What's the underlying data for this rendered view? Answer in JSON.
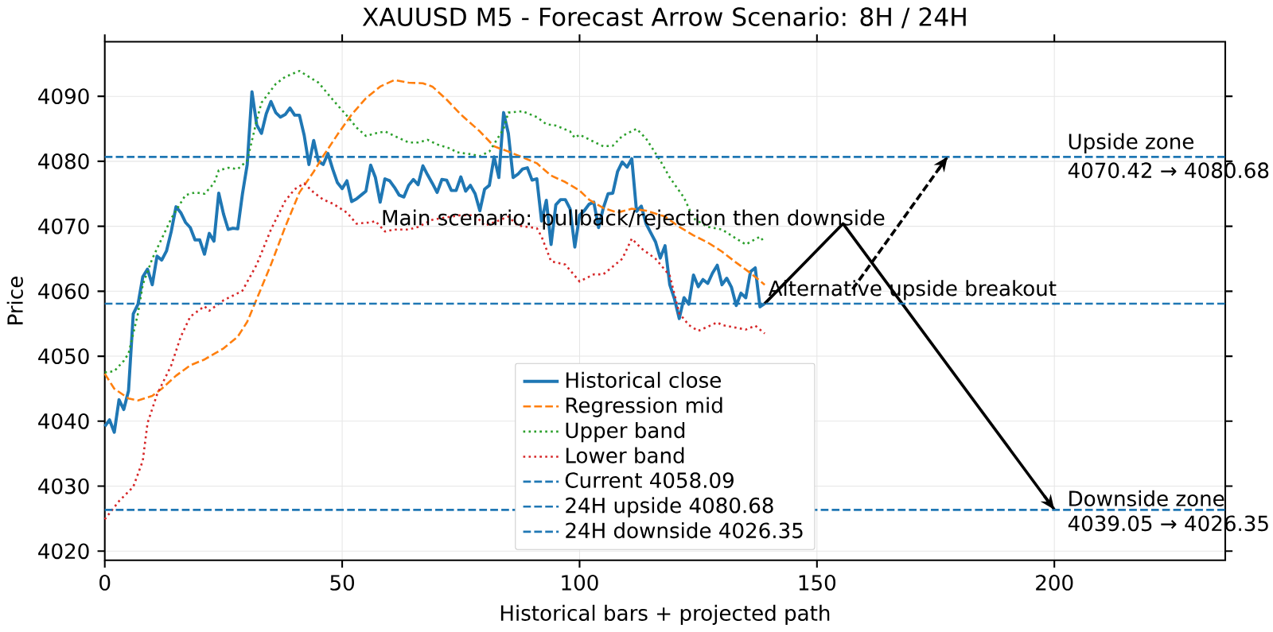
{
  "chart_data": {
    "type": "line",
    "title": "XAUUSD M5 - Forecast Arrow Scenario: 8H / 24H",
    "xlabel": "Historical bars + projected path",
    "ylabel": "Price",
    "xlim": [
      0,
      236
    ],
    "ylim": [
      4018.6,
      4098.4
    ],
    "xticks": [
      0,
      50,
      100,
      150,
      200
    ],
    "yticks": [
      4020,
      4030,
      4040,
      4050,
      4060,
      4070,
      4080,
      4090
    ],
    "grid": true,
    "legend": "bottom",
    "series": [
      {
        "name": "Historical close",
        "color": "#1f77b4",
        "line_style": "solid",
        "x": [
          0,
          1,
          2,
          3,
          4,
          5,
          6,
          7,
          8,
          9,
          10,
          11,
          12,
          13,
          14,
          15,
          16,
          17,
          18,
          19,
          20,
          21,
          22,
          23,
          24,
          25,
          26,
          27,
          28,
          29,
          30,
          31,
          32,
          33,
          34,
          35,
          36,
          37,
          38,
          39,
          40,
          41,
          42,
          43,
          44,
          45,
          46,
          47,
          48,
          49,
          50,
          51,
          52,
          53,
          54,
          55,
          56,
          57,
          58,
          59,
          60,
          61,
          62,
          63,
          64,
          65,
          66,
          67,
          68,
          69,
          70,
          71,
          72,
          73,
          74,
          75,
          76,
          77,
          78,
          79,
          80,
          81,
          82,
          83,
          84,
          85,
          86,
          87,
          88,
          89,
          90,
          91,
          92,
          93,
          94,
          95,
          96,
          97,
          98,
          99,
          100,
          101,
          102,
          103,
          104,
          105,
          106,
          107,
          108,
          109,
          110,
          111,
          112,
          113,
          114,
          115,
          116,
          117,
          118,
          119,
          120,
          121,
          122,
          123,
          124,
          125,
          126,
          127,
          128,
          129,
          130,
          131,
          132,
          133,
          134,
          135,
          136,
          137,
          138,
          139
        ],
        "values": [
          4039.2,
          4040.2,
          4038.3,
          4043.3,
          4041.8,
          4044.7,
          4056.5,
          4058.0,
          4062.2,
          4063.4,
          4061.0,
          4065.4,
          4064.8,
          4066.2,
          4069.2,
          4073.0,
          4072.1,
          4070.6,
          4069.8,
          4067.9,
          4067.9,
          4065.7,
          4068.9,
          4067.7,
          4075.1,
          4071.9,
          4069.5,
          4069.7,
          4069.6,
          4075.0,
          4079.5,
          4090.7,
          4085.6,
          4084.3,
          4087.3,
          4089.2,
          4087.5,
          4086.8,
          4087.2,
          4088.2,
          4087.1,
          4087.1,
          4084.0,
          4079.5,
          4083.2,
          4080.0,
          4079.5,
          4081.2,
          4078.8,
          4076.7,
          4075.8,
          4077.0,
          4073.8,
          4074.2,
          4074.8,
          4075.4,
          4079.4,
          4077.5,
          4073.7,
          4077.3,
          4077.0,
          4076.0,
          4074.8,
          4074.5,
          4076.3,
          4077.2,
          4076.4,
          4079.3,
          4077.9,
          4076.6,
          4075.2,
          4077.2,
          4077.1,
          4075.5,
          4075.5,
          4077.6,
          4075.4,
          4076.3,
          4075.0,
          4072.4,
          4075.7,
          4076.3,
          4080.7,
          4077.5,
          4087.5,
          4084.3,
          4077.5,
          4078.0,
          4078.8,
          4079.0,
          4077.1,
          4077.3,
          4070.8,
          4074.0,
          4067.2,
          4073.3,
          4074.1,
          4074.1,
          4072.7,
          4066.8,
          4071.7,
          4072.4,
          4073.4,
          4073.7,
          4069.8,
          4072.8,
          4075.0,
          4075.1,
          4078.4,
          4079.9,
          4079.1,
          4080.4,
          4072.3,
          4073.1,
          4070.4,
          4069.0,
          4067.6,
          4065.1,
          4067.0,
          4061.0,
          4058.8,
          4055.8,
          4059.0,
          4058.0,
          4062.5,
          4060.7,
          4061.8,
          4061.2,
          4062.8,
          4064.0,
          4061.0,
          4062.0,
          4060.6,
          4057.8,
          4059.7,
          4059.0,
          4063.0,
          4063.6,
          4057.6,
          4058.1
        ]
      },
      {
        "name": "Regression mid",
        "color": "#ff7f0e",
        "line_style": "dashed",
        "x": [
          0,
          2,
          5,
          7,
          10,
          12,
          15,
          18,
          21,
          25,
          28,
          30,
          32,
          35,
          38,
          41,
          44,
          46,
          49,
          52,
          55,
          58,
          61,
          64,
          67,
          69,
          72,
          75,
          79,
          82,
          85,
          88,
          91,
          94,
          97,
          100,
          102,
          105,
          108,
          111,
          114,
          118,
          121,
          124,
          127,
          130,
          133,
          136,
          139
        ],
        "values": [
          4047.3,
          4045.0,
          4043.5,
          4043.2,
          4043.9,
          4045.0,
          4047.0,
          4048.6,
          4049.5,
          4051.2,
          4053.0,
          4055.3,
          4058.8,
          4064.1,
          4069.9,
          4075.2,
          4078.4,
          4080.8,
          4084.1,
          4087.2,
          4089.7,
          4091.5,
          4092.5,
          4092.1,
          4092.0,
          4091.5,
          4089.5,
          4087.2,
          4084.6,
          4082.3,
          4081.5,
          4080.6,
          4079.7,
          4077.8,
          4076.8,
          4075.5,
          4074.1,
          4072.8,
          4072.1,
          4072.7,
          4072.4,
          4071.5,
          4069.9,
          4068.6,
          4067.5,
          4066.1,
          4064.4,
          4062.8,
          4061.0
        ]
      },
      {
        "name": "Upper band",
        "color": "#2ca02c",
        "line_style": "dotted",
        "x": [
          0,
          2,
          4,
          5,
          7,
          8,
          10,
          12,
          14,
          17,
          19,
          21,
          23,
          24,
          26,
          28,
          30,
          32,
          33,
          36,
          38,
          41,
          43,
          45,
          48,
          51,
          53,
          55,
          57,
          59,
          61,
          64,
          66,
          68,
          70,
          73,
          74,
          77,
          79,
          81,
          84,
          85,
          88,
          91,
          93,
          95,
          98,
          99,
          100,
          103,
          105,
          107,
          109,
          112,
          114,
          117,
          119,
          122,
          124,
          127,
          130,
          133,
          135,
          138,
          139
        ],
        "values": [
          4047.5,
          4047.7,
          4049.3,
          4050.4,
          4056.6,
          4061.0,
          4065.0,
          4068.1,
          4071.2,
          4074.8,
          4075.2,
          4075.0,
          4076.6,
          4078.6,
          4079.0,
          4078.8,
          4080.1,
          4086.3,
          4089.0,
          4091.9,
          4093.0,
          4093.9,
          4093.0,
          4092.1,
          4089.5,
          4087.0,
          4085.2,
          4083.9,
          4084.3,
          4084.6,
          4083.9,
          4082.9,
          4082.9,
          4083.3,
          4082.6,
          4081.9,
          4081.4,
          4081.1,
          4080.8,
          4081.5,
          4085.0,
          4087.5,
          4087.7,
          4086.8,
          4085.7,
          4085.5,
          4084.6,
          4083.6,
          4084.1,
          4083.0,
          4082.3,
          4082.4,
          4083.9,
          4085.0,
          4083.5,
          4080.1,
          4077.5,
          4074.4,
          4071.2,
          4069.9,
          4069.5,
          4068.1,
          4067.2,
          4068.4,
          4067.5
        ]
      },
      {
        "name": "Lower band",
        "color": "#d62728",
        "line_style": "dotted",
        "x": [
          0,
          3,
          6,
          8,
          9,
          11,
          14,
          16,
          18,
          21,
          22,
          25,
          28,
          29,
          32,
          35,
          38,
          40,
          42,
          44,
          46,
          48,
          51,
          53,
          56,
          57,
          59,
          61,
          64,
          66,
          69,
          73,
          75,
          78,
          80,
          82,
          85,
          87,
          91,
          92,
          94,
          97,
          100,
          103,
          105,
          109,
          111,
          113,
          116,
          119,
          121,
          123,
          125,
          129,
          130,
          135,
          137,
          139
        ],
        "values": [
          4024.9,
          4027.7,
          4029.9,
          4033.9,
          4039.7,
          4044.1,
          4048.6,
          4053.0,
          4056.1,
          4057.7,
          4057.0,
          4058.6,
          4059.7,
          4060.1,
          4064.1,
          4069.5,
          4073.9,
          4075.7,
          4076.6,
          4075.2,
          4074.1,
          4073.5,
          4072.1,
          4070.4,
          4070.6,
          4070.8,
          4069.2,
          4069.5,
          4069.5,
          4069.9,
          4071.0,
          4071.5,
          4071.7,
          4071.7,
          4070.1,
          4070.6,
          4071.5,
          4070.1,
          4069.7,
          4068.4,
          4064.6,
          4064.1,
          4061.5,
          4062.6,
          4062.6,
          4065.0,
          4068.1,
          4066.6,
          4065.0,
          4062.4,
          4056.6,
          4054.8,
          4053.9,
          4055.2,
          4054.8,
          4054.1,
          4054.7,
          4053.5
        ]
      },
      {
        "color": "#000000",
        "line_style": "solid",
        "x": [
          139,
          155.5,
          200
        ],
        "values": [
          4058.1,
          4070.4,
          4026.4
        ]
      },
      {
        "color": "#000000",
        "line_style": "dashed",
        "x": [
          157.5,
          177.5
        ],
        "values": [
          4060.3,
          4080.7
        ]
      }
    ],
    "ref_lines": [
      {
        "axis": "y",
        "value": 4058.09,
        "label": "Current 4058.09",
        "color": "#1f77b4",
        "line_style": "dashed"
      },
      {
        "axis": "y",
        "value": 4080.68,
        "label": "24H upside 4080.68",
        "color": "#1f77b4",
        "line_style": "dashed"
      },
      {
        "axis": "y",
        "value": 4026.35,
        "label": "24H downside 4026.35",
        "color": "#1f77b4",
        "line_style": "dashed"
      }
    ],
    "annotations": [
      {
        "text": "Main scenario: pullback/rejection then downside",
        "x": 155.5,
        "y": 4070.4
      },
      {
        "text": "Alternative upside breakout",
        "x": 139,
        "y": 4058.09
      },
      {
        "text": "Upside zone",
        "x": 202,
        "y": 4080.68
      },
      {
        "text": "4070.42 → 4080.68",
        "x": 202,
        "y": 4080.68
      },
      {
        "text": "Downside zone",
        "x": 202,
        "y": 4026.35
      },
      {
        "text": "4039.05 → 4026.35",
        "x": 202,
        "y": 4026.35
      }
    ]
  }
}
